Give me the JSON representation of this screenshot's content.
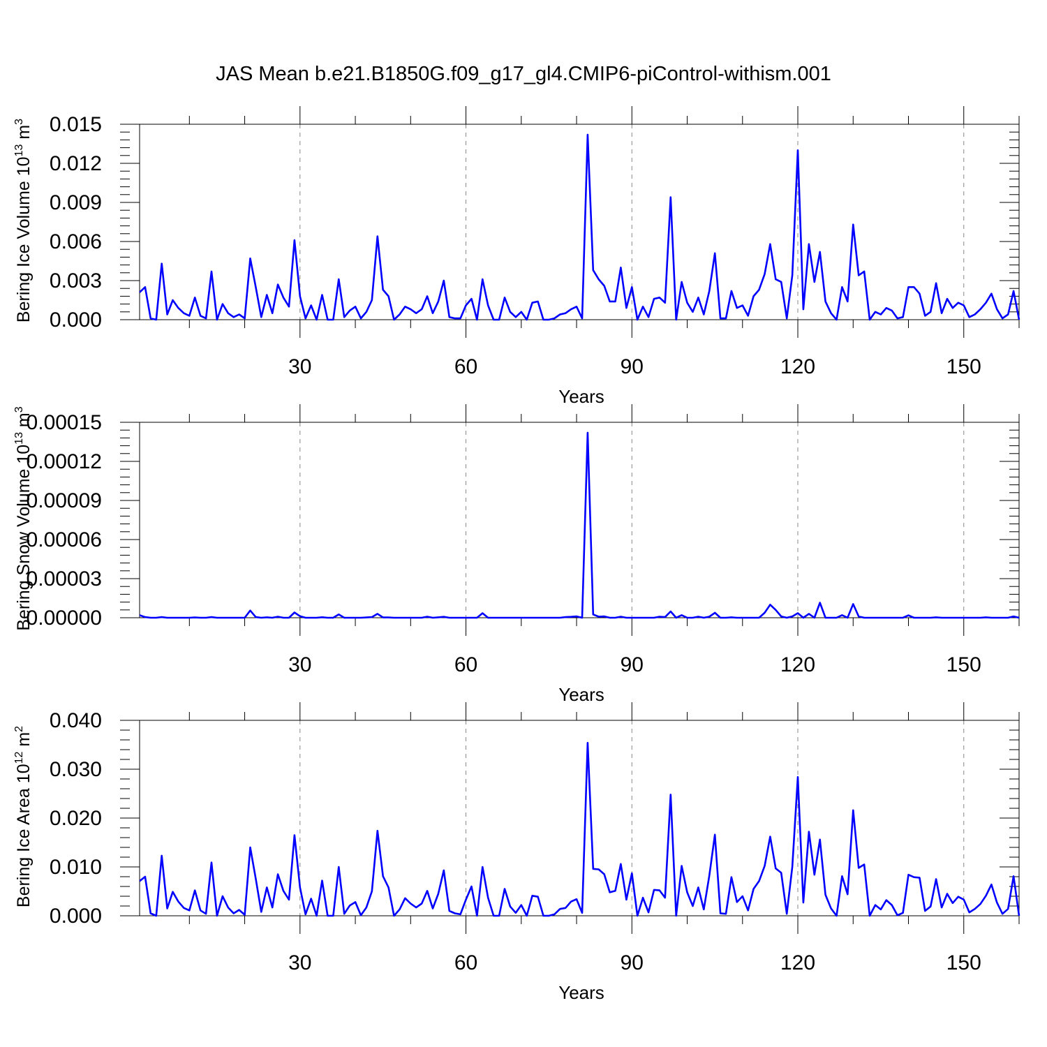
{
  "title": "JAS Mean b.e21.B1850G.f09_g17_gl4.CMIP6-piControl-withism.001",
  "line_color": "#0000ff",
  "chart_data": [
    {
      "type": "line",
      "xlabel": "Years",
      "ylabel": "Bering Ice Volume 10",
      "ylabel_exp": "13",
      "ylabel_unit": "m",
      "ylabel_unit_exp": "3",
      "xlim": [
        1,
        160
      ],
      "ylim": [
        0,
        0.015
      ],
      "xticks": [
        30,
        60,
        90,
        120,
        150
      ],
      "xtick_labels": [
        "30",
        "60",
        "90",
        "120",
        "150"
      ],
      "yticks": [
        0,
        0.003,
        0.006,
        0.009,
        0.012,
        0.015
      ],
      "ytick_labels": [
        "0.000",
        "0.003",
        "0.006",
        "0.009",
        "0.012",
        "0.015"
      ],
      "grid": "vertical dashed at major x ticks",
      "series": [
        {
          "x_start": 1,
          "values": [
            0.0021,
            0.0025,
            0.0001,
            0.0,
            0.0043,
            0.0004,
            0.0015,
            0.0009,
            0.0005,
            0.0003,
            0.0017,
            0.0003,
            0.0001,
            0.0037,
            0.0,
            0.0012,
            0.0005,
            0.0002,
            0.0004,
            0.0001,
            0.0047,
            0.0025,
            0.0002,
            0.0019,
            0.0005,
            0.0027,
            0.0017,
            0.001,
            0.0061,
            0.0018,
            0.0001,
            0.0011,
            0.0,
            0.0019,
            0.0,
            0.0,
            0.0031,
            0.0002,
            0.0007,
            0.001,
            0.0001,
            0.0006,
            0.0015,
            0.0064,
            0.0023,
            0.0018,
            0.0,
            0.0004,
            0.001,
            0.0008,
            0.0005,
            0.0008,
            0.0018,
            0.0005,
            0.0014,
            0.003,
            0.0002,
            0.0001,
            0.0001,
            0.0011,
            0.0016,
            0.0,
            0.0031,
            0.0011,
            0.0,
            0.0,
            0.0017,
            0.0006,
            0.0002,
            0.0006,
            0.0,
            0.0013,
            0.0014,
            0.0,
            0.0,
            0.0001,
            0.0004,
            0.0005,
            0.0008,
            0.001,
            0.0001,
            0.0142,
            0.0038,
            0.0031,
            0.0026,
            0.0014,
            0.0014,
            0.004,
            0.0009,
            0.0025,
            0.0,
            0.001,
            0.0002,
            0.0016,
            0.0017,
            0.0013,
            0.0094,
            0.0,
            0.0029,
            0.0013,
            0.0006,
            0.0017,
            0.0004,
            0.0022,
            0.0051,
            0.0001,
            0.0001,
            0.0022,
            0.0009,
            0.0011,
            0.0003,
            0.0018,
            0.0023,
            0.0035,
            0.0058,
            0.0031,
            0.0029,
            0.0001,
            0.0034,
            0.013,
            0.0008,
            0.0058,
            0.0029,
            0.0052,
            0.0014,
            0.0005,
            0.0,
            0.0025,
            0.0014,
            0.0073,
            0.0034,
            0.0037,
            0.0,
            0.0006,
            0.0004,
            0.0009,
            0.0007,
            0.0001,
            0.0002,
            0.0025,
            0.0025,
            0.002,
            0.0003,
            0.0006,
            0.0028,
            0.0005,
            0.0016,
            0.0009,
            0.0013,
            0.0011,
            0.0002,
            0.0004,
            0.0008,
            0.0013,
            0.002,
            0.0008,
            0.0001,
            0.0004,
            0.0022,
            0.0
          ]
        }
      ]
    },
    {
      "type": "line",
      "xlabel": "Years",
      "ylabel": "Bering Snow Volume 10",
      "ylabel_exp": "13",
      "ylabel_unit": "m",
      "ylabel_unit_exp": "3",
      "xlim": [
        1,
        160
      ],
      "ylim": [
        0,
        0.00015
      ],
      "xticks": [
        30,
        60,
        90,
        120,
        150
      ],
      "xtick_labels": [
        "30",
        "60",
        "90",
        "120",
        "150"
      ],
      "yticks": [
        0,
        3e-05,
        6e-05,
        9e-05,
        0.00012,
        0.00015
      ],
      "ytick_labels": [
        "0.00000",
        "0.00003",
        "0.00006",
        "0.00009",
        "0.00012",
        "0.00015"
      ],
      "grid": "vertical dashed at major x ticks",
      "series": [
        {
          "x_start": 1,
          "values": [
            2e-06,
            5e-07,
            0,
            0,
            5e-07,
            0,
            0,
            0,
            0,
            0,
            2e-07,
            0,
            0,
            5e-07,
            0,
            0,
            0,
            0,
            0,
            0,
            5.5e-06,
            5e-07,
            0,
            3e-07,
            0,
            8e-07,
            0,
            0,
            4e-06,
            1.2e-06,
            0,
            0,
            0,
            4e-07,
            0,
            0,
            2.5e-06,
            0,
            0,
            0,
            0,
            2e-07,
            5e-07,
            3e-06,
            2e-07,
            2e-07,
            0,
            0,
            0,
            0,
            0,
            0,
            8e-07,
            0,
            3e-07,
            7e-07,
            0,
            0,
            0,
            0,
            0,
            0,
            3.5e-06,
            0,
            0,
            0,
            0,
            0,
            0,
            0,
            0,
            0,
            0,
            0,
            0,
            0,
            0,
            5e-07,
            7e-07,
            1e-06,
            0,
            0.000142,
            2.5e-06,
            8e-07,
            1e-06,
            0,
            0,
            8e-07,
            0,
            0,
            0,
            0,
            0,
            0,
            8e-07,
            5e-07,
            4.8e-06,
            0,
            2e-06,
            0,
            0,
            8e-07,
            0,
            8e-07,
            3.8e-06,
            0,
            0,
            3e-07,
            0,
            0,
            0,
            0,
            0,
            3.8e-06,
            1e-05,
            6e-06,
            1e-06,
            0,
            1e-06,
            3.5e-06,
            0,
            3e-06,
            0,
            1.15e-05,
            0,
            0,
            0,
            2e-06,
            0,
            1.05e-05,
            1e-06,
            0,
            0,
            0,
            0,
            0,
            0,
            0,
            0,
            1.8e-06,
            0,
            0,
            0,
            0,
            3e-07,
            0,
            0,
            0,
            0,
            0,
            0,
            0,
            0,
            3e-07,
            0,
            0,
            0,
            0,
            1e-06,
            0
          ]
        }
      ]
    },
    {
      "type": "line",
      "xlabel": "Years",
      "ylabel": "Bering Ice Area 10",
      "ylabel_exp": "12",
      "ylabel_unit": "m",
      "ylabel_unit_exp": "2",
      "xlim": [
        1,
        160
      ],
      "ylim": [
        0,
        0.04
      ],
      "xticks": [
        30,
        60,
        90,
        120,
        150
      ],
      "xtick_labels": [
        "30",
        "60",
        "90",
        "120",
        "150"
      ],
      "yticks": [
        0,
        0.01,
        0.02,
        0.03,
        0.04
      ],
      "ytick_labels": [
        "0.000",
        "0.010",
        "0.020",
        "0.030",
        "0.040"
      ],
      "grid": "vertical dashed at major x ticks",
      "series": [
        {
          "x_start": 1,
          "values": [
            0.0071,
            0.008,
            0.0005,
            0.0,
            0.0123,
            0.0015,
            0.0049,
            0.0029,
            0.0016,
            0.0011,
            0.0052,
            0.0011,
            0.0004,
            0.0109,
            0.0,
            0.004,
            0.0017,
            0.0005,
            0.0012,
            0.0002,
            0.014,
            0.0076,
            0.0008,
            0.0058,
            0.0017,
            0.0085,
            0.0051,
            0.0033,
            0.0165,
            0.0058,
            0.0003,
            0.0035,
            0.0,
            0.0072,
            0.0,
            0.0,
            0.01,
            0.0004,
            0.0021,
            0.0028,
            0.0001,
            0.0017,
            0.005,
            0.0174,
            0.0081,
            0.0058,
            0.0,
            0.0013,
            0.0036,
            0.0025,
            0.0017,
            0.0025,
            0.0051,
            0.0015,
            0.0045,
            0.0093,
            0.001,
            0.0005,
            0.0003,
            0.0033,
            0.006,
            0.0,
            0.01,
            0.0037,
            0.0,
            0.0,
            0.0055,
            0.0019,
            0.0006,
            0.0022,
            0.0,
            0.0041,
            0.0039,
            0.0,
            0.0,
            0.0003,
            0.0014,
            0.0016,
            0.0029,
            0.0034,
            0.0006,
            0.0354,
            0.0096,
            0.0095,
            0.0085,
            0.0048,
            0.0051,
            0.0106,
            0.0033,
            0.0087,
            0.0,
            0.0037,
            0.0007,
            0.0053,
            0.0052,
            0.0037,
            0.0248,
            0.0,
            0.0102,
            0.0048,
            0.002,
            0.0058,
            0.0013,
            0.0082,
            0.0166,
            0.0005,
            0.0004,
            0.0079,
            0.0028,
            0.004,
            0.0011,
            0.0055,
            0.0071,
            0.0102,
            0.0162,
            0.0097,
            0.0088,
            0.0004,
            0.01,
            0.0284,
            0.0027,
            0.0172,
            0.0084,
            0.0156,
            0.0043,
            0.0015,
            0.0,
            0.0081,
            0.0044,
            0.0216,
            0.0098,
            0.0105,
            0.0,
            0.0022,
            0.0013,
            0.0032,
            0.0022,
            0.0001,
            0.0006,
            0.0084,
            0.0079,
            0.0078,
            0.001,
            0.0019,
            0.0075,
            0.0017,
            0.0045,
            0.0026,
            0.0039,
            0.0033,
            0.0007,
            0.0014,
            0.0024,
            0.0041,
            0.0064,
            0.0027,
            0.0004,
            0.0014,
            0.0081,
            0.0
          ]
        }
      ]
    }
  ]
}
